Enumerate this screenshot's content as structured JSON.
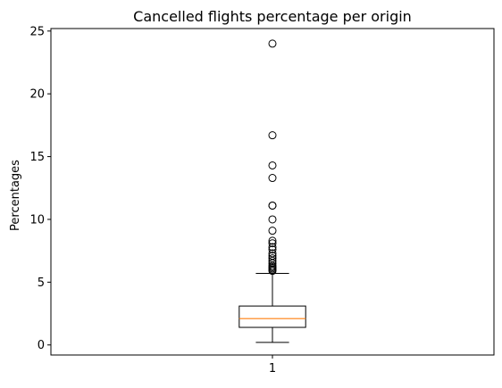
{
  "chart_data": {
    "type": "boxplot",
    "title": "Cancelled flights percentage per origin",
    "xlabel": "",
    "ylabel": "Percentages",
    "ylim": [
      -0.8,
      25.2
    ],
    "yticks": [
      0,
      5,
      10,
      15,
      20,
      25
    ],
    "xlim": [
      0.5,
      1.5
    ],
    "xticks": [
      1
    ],
    "xtick_labels": [
      "1"
    ],
    "grid": false,
    "colors": {
      "box": "#000000",
      "median": "#ff7f0e",
      "flier": "#000000"
    },
    "boxes": [
      {
        "position": 1,
        "label": "1",
        "whisker_low": 0.2,
        "q1": 1.4,
        "median": 2.1,
        "q3": 3.1,
        "whisker_high": 5.7,
        "fliers": [
          5.9,
          6.0,
          6.1,
          6.2,
          6.3,
          6.5,
          6.7,
          6.9,
          7.1,
          7.3,
          7.6,
          7.8,
          8.1,
          8.3,
          9.1,
          10.0,
          11.1,
          11.1,
          13.3,
          14.3,
          16.7,
          24.0
        ]
      }
    ]
  }
}
